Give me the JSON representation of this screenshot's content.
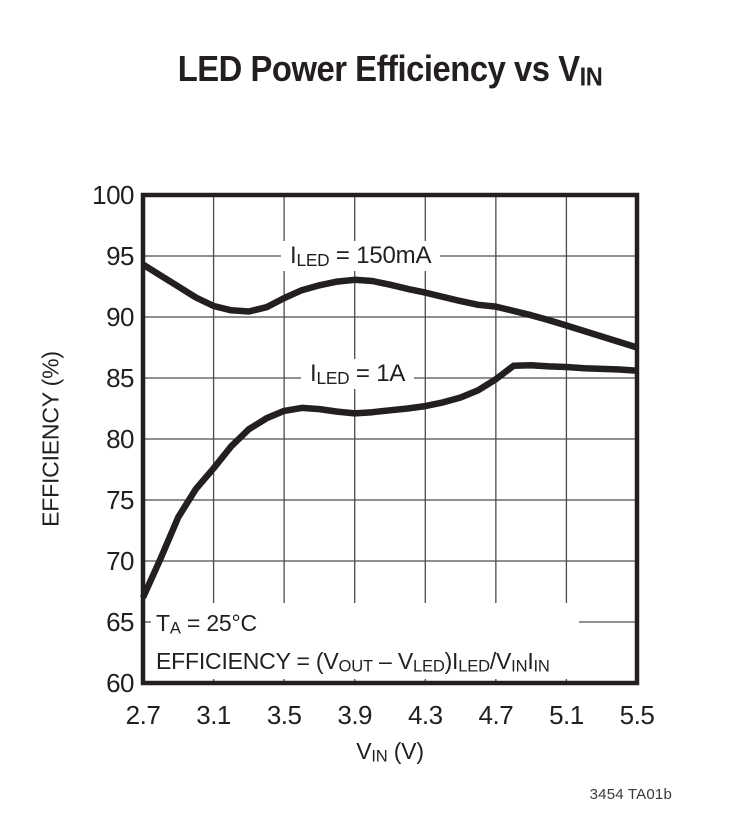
{
  "title": {
    "text": "LED Power Efficiency vs V",
    "sub": "IN"
  },
  "axes": {
    "y_title": "EFFICIENCY (%)",
    "x_title_parts": [
      {
        "t": "V"
      },
      {
        "t": "IN",
        "sub": true
      },
      {
        "t": " (V)"
      }
    ],
    "x_tick_labels": [
      "2.7",
      "3.1",
      "3.5",
      "3.9",
      "4.3",
      "4.7",
      "5.1",
      "5.5"
    ],
    "y_tick_labels": [
      "100",
      "95",
      "90",
      "85",
      "80",
      "75",
      "70",
      "65",
      "60"
    ]
  },
  "labels": {
    "series1": [
      {
        "t": "I"
      },
      {
        "t": "LED",
        "sub": true
      },
      {
        "t": " = 150mA"
      }
    ],
    "series2": [
      {
        "t": "I"
      },
      {
        "t": "LED",
        "sub": true
      },
      {
        "t": " = 1A"
      }
    ]
  },
  "annotations": {
    "line1": [
      {
        "t": "T"
      },
      {
        "t": "A",
        "sub": true
      },
      {
        "t": " = 25°C"
      }
    ],
    "line2": [
      {
        "t": "EFFICIENCY = (V"
      },
      {
        "t": "OUT",
        "sub": true
      },
      {
        "t": " – V"
      },
      {
        "t": "LED",
        "sub": true
      },
      {
        "t": ")I"
      },
      {
        "t": "LED",
        "sub": true
      },
      {
        "t": "/V"
      },
      {
        "t": "IN",
        "sub": true
      },
      {
        "t": "I"
      },
      {
        "t": "IN",
        "sub": true
      }
    ]
  },
  "footer": {
    "code": "3454 TA01b"
  },
  "colors": {
    "ink": "#231f20",
    "grid": "#4c4c4c",
    "background": "#ffffff"
  },
  "chart_data": {
    "type": "line",
    "title": "LED Power Efficiency vs VIN",
    "xlabel": "VIN (V)",
    "ylabel": "EFFICIENCY (%)",
    "xlim": [
      2.7,
      5.5
    ],
    "ylim": [
      60,
      100
    ],
    "x_ticks": [
      2.7,
      3.1,
      3.5,
      3.9,
      4.3,
      4.7,
      5.1,
      5.5
    ],
    "y_ticks": [
      60,
      65,
      70,
      75,
      80,
      85,
      90,
      95,
      100
    ],
    "grid": true,
    "legend_position": "inline-curve-labels",
    "x": [
      2.7,
      2.8,
      2.9,
      3.0,
      3.1,
      3.2,
      3.3,
      3.4,
      3.5,
      3.6,
      3.7,
      3.8,
      3.9,
      4.0,
      4.1,
      4.2,
      4.3,
      4.4,
      4.5,
      4.6,
      4.7,
      4.8,
      4.9,
      5.0,
      5.1,
      5.2,
      5.3,
      5.4,
      5.5
    ],
    "series": [
      {
        "name": "ILED = 150mA",
        "values": [
          94.3,
          93.4,
          92.5,
          91.6,
          90.9,
          90.55,
          90.45,
          90.8,
          91.55,
          92.2,
          92.6,
          92.9,
          93.05,
          92.95,
          92.65,
          92.3,
          92.0,
          91.65,
          91.3,
          91.0,
          90.85,
          90.5,
          90.15,
          89.75,
          89.3,
          88.85,
          88.4,
          87.95,
          87.5
        ]
      },
      {
        "name": "ILED = 1A",
        "values": [
          67.0,
          70.2,
          73.6,
          75.9,
          77.6,
          79.4,
          80.8,
          81.7,
          82.3,
          82.55,
          82.45,
          82.25,
          82.1,
          82.2,
          82.35,
          82.5,
          82.7,
          83.0,
          83.4,
          84.0,
          84.9,
          86.0,
          86.05,
          85.95,
          85.9,
          85.8,
          85.75,
          85.7,
          85.6
        ]
      }
    ]
  }
}
